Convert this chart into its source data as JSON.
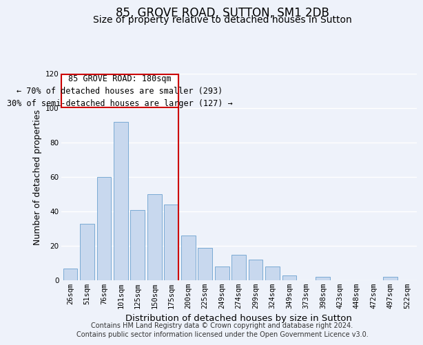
{
  "title": "85, GROVE ROAD, SUTTON, SM1 2DB",
  "subtitle": "Size of property relative to detached houses in Sutton",
  "xlabel": "Distribution of detached houses by size in Sutton",
  "ylabel": "Number of detached properties",
  "categories": [
    "26sqm",
    "51sqm",
    "76sqm",
    "101sqm",
    "125sqm",
    "150sqm",
    "175sqm",
    "200sqm",
    "225sqm",
    "249sqm",
    "274sqm",
    "299sqm",
    "324sqm",
    "349sqm",
    "373sqm",
    "398sqm",
    "423sqm",
    "448sqm",
    "472sqm",
    "497sqm",
    "522sqm"
  ],
  "values": [
    7,
    33,
    60,
    92,
    41,
    50,
    44,
    26,
    19,
    8,
    15,
    12,
    8,
    3,
    0,
    2,
    0,
    0,
    0,
    2,
    0
  ],
  "bar_color": "#c8d8ee",
  "bar_edge_color": "#7aaad4",
  "reference_bar_index": 6,
  "reference_line_color": "#cc0000",
  "annotation_line1": "85 GROVE ROAD: 180sqm",
  "annotation_line2": "← 70% of detached houses are smaller (293)",
  "annotation_line3": "30% of semi-detached houses are larger (127) →",
  "annotation_box_facecolor": "#ffffff",
  "annotation_box_edgecolor": "#cc0000",
  "ylim": [
    0,
    120
  ],
  "yticks": [
    0,
    20,
    40,
    60,
    80,
    100,
    120
  ],
  "background_color": "#eef2fa",
  "grid_color": "#ffffff",
  "footer_line1": "Contains HM Land Registry data © Crown copyright and database right 2024.",
  "footer_line2": "Contains public sector information licensed under the Open Government Licence v3.0.",
  "title_fontsize": 12,
  "subtitle_fontsize": 10,
  "xlabel_fontsize": 9.5,
  "ylabel_fontsize": 9,
  "tick_fontsize": 7.5,
  "annotation_fontsize": 8.5,
  "footer_fontsize": 7
}
